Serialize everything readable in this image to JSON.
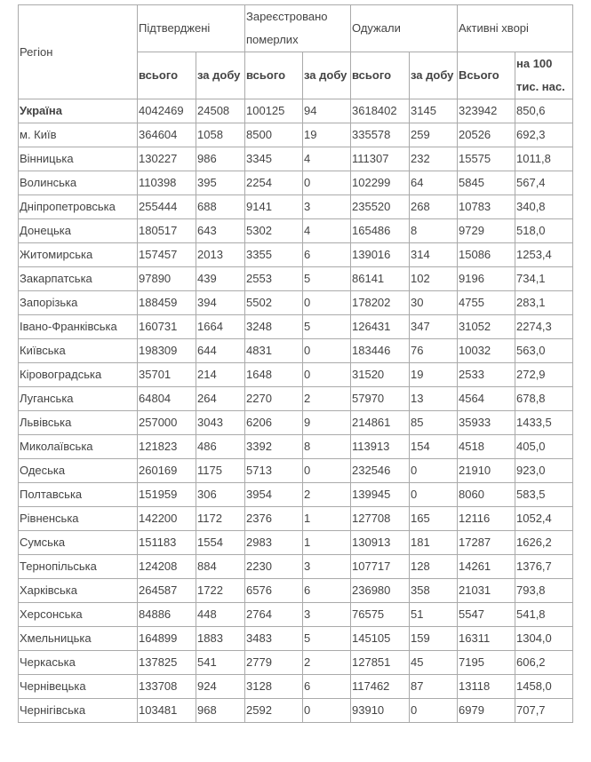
{
  "header": {
    "region": "Регіон",
    "groups": [
      "Підтверджені",
      "Зареєстровано померлих",
      "Одужали",
      "Активні хворі"
    ],
    "sub": [
      "всього",
      "за добу",
      "всього",
      "за добу",
      "всього",
      "за добу",
      "Всього",
      "на 100 тис. нас."
    ]
  },
  "rows": [
    [
      "Україна",
      "4042469",
      "24508",
      "100125",
      "94",
      "3618402",
      "3145",
      "323942",
      "850,6"
    ],
    [
      "м. Київ",
      "364604",
      "1058",
      "8500",
      "19",
      "335578",
      "259",
      "20526",
      "692,3"
    ],
    [
      "Вінницька",
      "130227",
      "986",
      "3345",
      "4",
      "111307",
      "232",
      "15575",
      "1011,8"
    ],
    [
      "Волинська",
      "110398",
      "395",
      "2254",
      "0",
      "102299",
      "64",
      "5845",
      "567,4"
    ],
    [
      "Дніпропетровська",
      "255444",
      "688",
      "9141",
      "3",
      "235520",
      "268",
      "10783",
      "340,8"
    ],
    [
      "Донецька",
      "180517",
      "643",
      "5302",
      "4",
      "165486",
      "8",
      "9729",
      "518,0"
    ],
    [
      "Житомирська",
      "157457",
      "2013",
      "3355",
      "6",
      "139016",
      "314",
      "15086",
      "1253,4"
    ],
    [
      "Закарпатська",
      "97890",
      "439",
      "2553",
      "5",
      "86141",
      "102",
      "9196",
      "734,1"
    ],
    [
      "Запорізька",
      "188459",
      "394",
      "5502",
      "0",
      "178202",
      "30",
      "4755",
      "283,1"
    ],
    [
      "Івано-Франківська",
      "160731",
      "1664",
      "3248",
      "5",
      "126431",
      "347",
      "31052",
      "2274,3"
    ],
    [
      "Київська",
      "198309",
      "644",
      "4831",
      "0",
      "183446",
      "76",
      "10032",
      "563,0"
    ],
    [
      "Кіровоградська",
      "35701",
      "214",
      "1648",
      "0",
      "31520",
      "19",
      "2533",
      "272,9"
    ],
    [
      "Луганська",
      "64804",
      "264",
      "2270",
      "2",
      "57970",
      "13",
      "4564",
      "678,8"
    ],
    [
      "Львівська",
      "257000",
      "3043",
      "6206",
      "9",
      "214861",
      "85",
      "35933",
      "1433,5"
    ],
    [
      "Миколаївська",
      "121823",
      "486",
      "3392",
      "8",
      "113913",
      "154",
      "4518",
      "405,0"
    ],
    [
      "Одеська",
      "260169",
      "1175",
      "5713",
      "0",
      "232546",
      "0",
      "21910",
      "923,0"
    ],
    [
      "Полтавська",
      "151959",
      "306",
      "3954",
      "2",
      "139945",
      "0",
      "8060",
      "583,5"
    ],
    [
      "Рівненська",
      "142200",
      "1172",
      "2376",
      "1",
      "127708",
      "165",
      "12116",
      "1052,4"
    ],
    [
      "Сумська",
      "151183",
      "1554",
      "2983",
      "1",
      "130913",
      "181",
      "17287",
      "1626,2"
    ],
    [
      "Тернопільська",
      "124208",
      "884",
      "2230",
      "3",
      "107717",
      "128",
      "14261",
      "1376,7"
    ],
    [
      "Харківська",
      "264587",
      "1722",
      "6576",
      "6",
      "236980",
      "358",
      "21031",
      "793,8"
    ],
    [
      "Херсонська",
      "84886",
      "448",
      "2764",
      "3",
      "76575",
      "51",
      "5547",
      "541,8"
    ],
    [
      "Хмельницька",
      "164899",
      "1883",
      "3483",
      "5",
      "145105",
      "159",
      "16311",
      "1304,0"
    ],
    [
      "Черкаська",
      "137825",
      "541",
      "2779",
      "2",
      "127851",
      "45",
      "7195",
      "606,2"
    ],
    [
      "Чернівецька",
      "133708",
      "924",
      "3128",
      "6",
      "117462",
      "87",
      "13118",
      "1458,0"
    ],
    [
      "Чернігівська",
      "103481",
      "968",
      "2592",
      "0",
      "93910",
      "0",
      "6979",
      "707,7"
    ]
  ]
}
